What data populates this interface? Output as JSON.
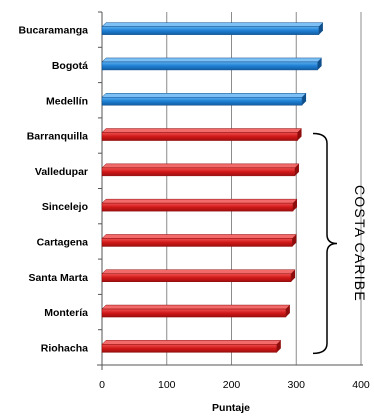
{
  "chart_data": {
    "type": "bar",
    "orientation": "horizontal",
    "style": "3d",
    "categories": [
      "Bucaramanga",
      "Bogotá",
      "Medellín",
      "Barranquilla",
      "Valledupar",
      "Sincelejo",
      "Cartagena",
      "Santa Marta",
      "Montería",
      "Riohacha"
    ],
    "values": [
      335,
      333,
      309,
      302,
      298,
      295,
      294,
      292,
      284,
      270
    ],
    "category_group": [
      "other",
      "other",
      "other",
      "coast",
      "coast",
      "coast",
      "coast",
      "coast",
      "coast",
      "coast"
    ],
    "colors": {
      "other": "#1f7fd2",
      "coast": "#d01818"
    },
    "xlabel": "Puntaje",
    "ylabel": "",
    "xlim": [
      0,
      400
    ],
    "xticks": [
      "0",
      "100",
      "200",
      "300",
      "400"
    ],
    "grid": "vertical",
    "legend": "none",
    "annotation": {
      "text": "Costa Caribe",
      "display_text": "COSTA CARIBE",
      "spans": [
        "Barranquilla",
        "Riohacha"
      ]
    }
  }
}
